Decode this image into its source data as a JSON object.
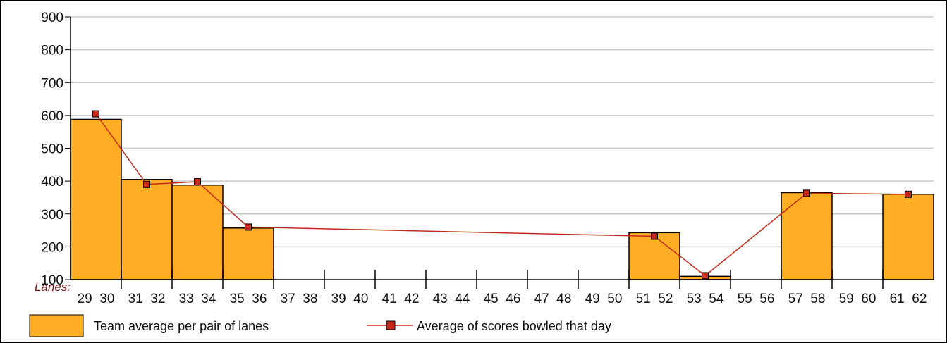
{
  "chart_data": {
    "type": "bar",
    "x_prefix_label": "Lanes:",
    "categories": [
      "29 30",
      "31 32",
      "33 34",
      "35 36",
      "37 38",
      "39 40",
      "41 42",
      "43 44",
      "45 46",
      "47 48",
      "49 50",
      "51 52",
      "53 54",
      "55 56",
      "57 58",
      "59 60",
      "61 62"
    ],
    "x_tick_labels": [
      "29",
      "30",
      "31",
      "32",
      "33",
      "34",
      "35",
      "36",
      "37",
      "38",
      "39",
      "40",
      "41",
      "42",
      "43",
      "44",
      "45",
      "46",
      "47",
      "48",
      "49",
      "50",
      "51",
      "52",
      "53",
      "54",
      "55",
      "56",
      "57",
      "58",
      "59",
      "60",
      "61",
      "62"
    ],
    "series": [
      {
        "name": "Team average per pair of lanes",
        "type": "bar",
        "values": [
          588,
          405,
          388,
          257,
          null,
          null,
          null,
          null,
          null,
          null,
          null,
          243,
          110,
          null,
          365,
          null,
          360
        ]
      },
      {
        "name": "Average of scores bowled that day",
        "type": "line",
        "values": [
          605,
          390,
          398,
          260,
          null,
          null,
          null,
          null,
          null,
          null,
          null,
          232,
          112,
          null,
          363,
          null,
          360
        ]
      }
    ],
    "ylim": [
      100,
      900
    ],
    "yticks": [
      100,
      200,
      300,
      400,
      500,
      600,
      700,
      800,
      900
    ],
    "grid": true,
    "legend_position": "bottom",
    "colors": {
      "bar_fill": "#ffad22",
      "bar_stroke": "#000000",
      "line": "#c4291b",
      "marker": "#c4291b",
      "grid": "#c8c8c8",
      "lanes_label": "#7a1515"
    }
  }
}
